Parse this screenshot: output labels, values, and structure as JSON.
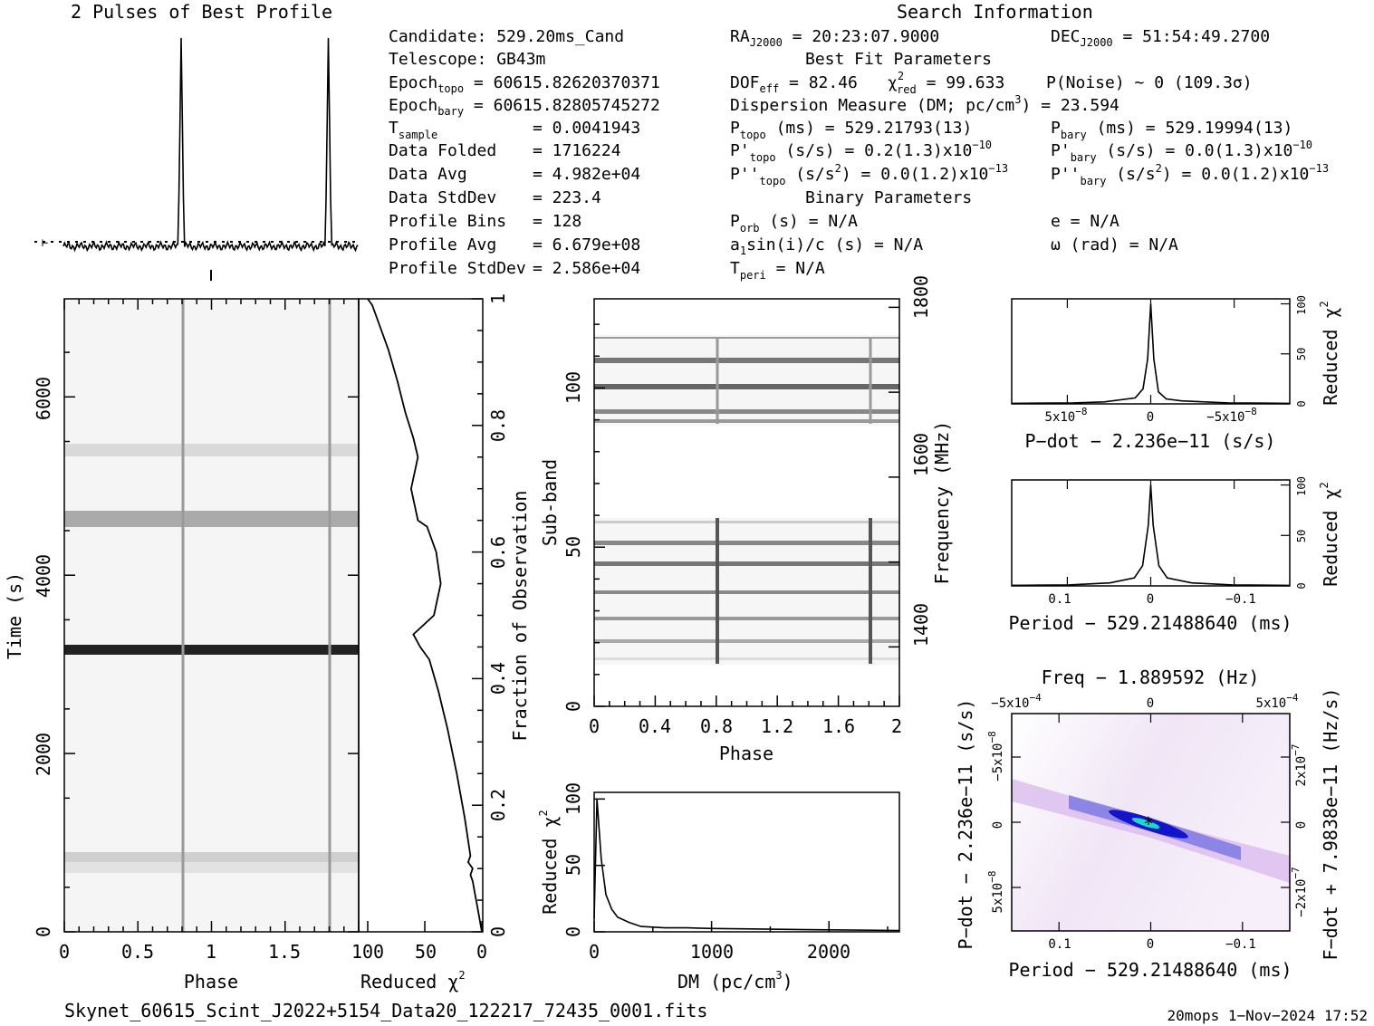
{
  "prof_title": "2 Pulses of Best Profile",
  "search_title": "Search Information",
  "info": {
    "candidate": "Candidate:  529.20ms_Cand",
    "telescope": "Telescope:  GB43m",
    "epoch_topo_lbl": "Epoch",
    "epoch_topo_sub": "topo",
    "epoch_topo_val": " = 60615.82620370371",
    "epoch_bary_lbl": "Epoch",
    "epoch_bary_sub": "bary",
    "epoch_bary_val": " = 60615.82805745272",
    "tsample_lbl": "T",
    "tsample_sub": "sample",
    "tsample_val": "=  0.0041943",
    "folded_lbl": "Data Folded",
    "folded_val": "=  1716224",
    "avg_lbl": "Data Avg",
    "avg_val": "=  4.982e+04",
    "std_lbl": "Data StdDev",
    "std_val": "=  223.4",
    "bins_lbl": "Profile Bins",
    "bins_val": "=  128",
    "pavg_lbl": "Profile Avg",
    "pavg_val": "=  6.679e+08",
    "pstd_lbl": "Profile StdDev",
    "pstd_val": "=  2.586e+04"
  },
  "search": {
    "ra_lbl": "RA",
    "ra_sub": "J2000",
    "ra_val": " = 20:23:07.9000",
    "dec_lbl": "DEC",
    "dec_sub": "J2000",
    "dec_val": " = 51:54:49.2700",
    "best_fit": "Best Fit Parameters",
    "dof_lbl": "DOF",
    "dof_sub": "eff",
    "dof_val": " = 82.46",
    "chi_sup": "2",
    "chi_sub": "red",
    "chi_val": " = 99.633",
    "pnoise": "P(Noise) ~ 0   (109.3σ)",
    "dm_line": "Dispersion Measure (DM; pc/cm",
    "dm_sup": "3",
    "dm_val": ") = 23.594",
    "ptopo_lbl": "P",
    "ptopo_sub": "topo",
    "ptopo_val": " (ms) =  529.21793(13)",
    "pbary_lbl": "P",
    "pbary_sub": "bary",
    "pbary_val": " (ms) =  529.19994(13)",
    "pdtopo_lbl": "P'",
    "pdtopo_sub": "topo",
    "pdtopo_val": " (s/s) =  0.2(1.3)x10",
    "pdtopo_exp": "−10",
    "pdbary_lbl": "P'",
    "pdbary_sub": "bary",
    "pdbary_val": " (s/s) = 0.0(1.3)x10",
    "pdbary_exp": "−10",
    "pddtopo_lbl": "P''",
    "pddtopo_sub": "topo",
    "pddtopo_val": " (s/s",
    "pddtopo_sup": "2",
    "pddtopo_val2": ") = 0.0(1.2)x10",
    "pddtopo_exp": "−13",
    "pddbary_lbl": "P''",
    "pddbary_sub": "bary",
    "pddbary_val": " (s/s",
    "pddbary_sup": "2",
    "pddbary_val2": ") = 0.0(1.2)x10",
    "pddbary_exp": "−13",
    "binary": "Binary Parameters",
    "porb_lbl": "P",
    "porb_sub": "orb",
    "porb_val": " (s) = N/A",
    "e_val": "e = N/A",
    "a1_lbl": "a",
    "a1_sub": "1",
    "a1_val": "sin(i)/c (s) = N/A",
    "omega_val": "ω (rad) = N/A",
    "tperi_lbl": "T",
    "tperi_sub": "peri",
    "tperi_val": " = N/A"
  },
  "axes": {
    "time_ylabel": "Time (s)",
    "phase_xlabel": "Phase",
    "redchi_xlabel": "Reduced χ",
    "redchi_sup": "2",
    "frac_label": "Fraction of Observation",
    "subband_label": "Sub-band",
    "freq_label": "Frequency (MHz)",
    "phase2_xlabel": "Phase",
    "dm_xlabel": "DM (pc/cm",
    "dm_xsup": "3",
    "dm_xclose": ")",
    "dm_ylabel": "Reduced χ",
    "dm_ysup": "2",
    "pdot_xlabel": "P−dot − 2.236e−11 (s/s)",
    "pdot_ylabel": "Reduced χ",
    "pdot_ysup": "2",
    "period_xlabel": "Period − 529.21488640 (ms)",
    "period_ylabel": "Reduced χ",
    "period_ysup": "2",
    "freq_top_label": "Freq − 1.889592 (Hz)",
    "pp_xlabel": "Period − 529.21488640 (ms)",
    "pp_ylabel": "P−dot − 2.236e−11 (s/s)",
    "pp_rlabel": "F−dot + 7.9838e−11 (Hz/s)"
  },
  "ticks": {
    "time": [
      "0",
      "2000",
      "4000",
      "6000"
    ],
    "phase": [
      "0",
      "0.5",
      "1",
      "1.5"
    ],
    "redchi": [
      "100",
      "50",
      "0"
    ],
    "frac": [
      "0",
      "0.2",
      "0.4",
      "0.6",
      "0.8",
      "1"
    ],
    "subband": [
      "0",
      "50",
      "100"
    ],
    "phase2": [
      "0",
      "0.4",
      "0.8",
      "1.2",
      "1.6",
      "2"
    ],
    "freq": [
      "1400",
      "1600",
      "1800"
    ],
    "dm_x": [
      "0",
      "1000",
      "2000"
    ],
    "dm_y": [
      "0",
      "50",
      "100"
    ],
    "pdot_x": [
      "5x10",
      "0",
      "−5x10"
    ],
    "pdot_xexp": [
      "−8",
      "",
      "−8"
    ],
    "chi_y": [
      "0",
      "50",
      "100"
    ],
    "period_x": [
      "0.1",
      "0",
      "−0.1"
    ],
    "freq_top": [
      "−5x10",
      "0",
      "5x10"
    ],
    "freq_top_exp": [
      "−4",
      "",
      "−4"
    ],
    "pp_y": [
      "−5x10",
      "0",
      "5x10"
    ],
    "pp_yexp": [
      "−8",
      "",
      "−8"
    ],
    "pp_r": [
      "2x10",
      "0",
      "−2x10"
    ],
    "pp_rexp": [
      "−7",
      "",
      "−7"
    ]
  },
  "footer": {
    "filename": "Skynet_60615_Scint_J2022+5154_Data20_122217_72435_0001.fits",
    "stamp": "20mops   1−Nov−2024 17:52"
  },
  "chart_data": [
    {
      "type": "line",
      "name": "profile",
      "title": "2 Pulses of Best Profile",
      "x": [
        0.0,
        0.78,
        0.8,
        0.82,
        0.84,
        1.0,
        1.78,
        1.8,
        1.82,
        1.84,
        2.0
      ],
      "y": [
        0.0,
        0.0,
        1.0,
        0.0,
        0.0,
        0.0,
        0.0,
        1.0,
        0.0,
        0.0,
        0.0
      ]
    },
    {
      "type": "heatmap",
      "name": "time-phase",
      "xlabel": "Phase",
      "ylabel": "Time (s)",
      "xlim": [
        0,
        2
      ],
      "ylim": [
        0,
        7100
      ],
      "pulse_phases": [
        0.81,
        1.81
      ]
    },
    {
      "type": "line",
      "name": "reduced-chi2-vs-time",
      "xlabel": "Reduced χ²",
      "ylabel": "Fraction of Observation",
      "xlim": [
        100,
        0
      ],
      "ylim": [
        0,
        1
      ],
      "x": [
        0,
        2,
        4,
        6,
        8,
        10,
        8,
        12,
        10,
        15,
        22,
        30,
        38,
        46,
        54,
        60,
        42,
        36,
        40,
        48,
        56,
        62,
        56,
        60,
        67,
        74,
        82,
        90,
        96,
        100
      ],
      "y": [
        0.0,
        0.02,
        0.04,
        0.06,
        0.08,
        0.09,
        0.1,
        0.11,
        0.12,
        0.18,
        0.25,
        0.32,
        0.38,
        0.43,
        0.45,
        0.47,
        0.5,
        0.55,
        0.6,
        0.64,
        0.65,
        0.7,
        0.75,
        0.78,
        0.82,
        0.87,
        0.92,
        0.96,
        0.99,
        1.0
      ]
    },
    {
      "type": "heatmap",
      "name": "subband-phase",
      "xlabel": "Phase",
      "ylabel": "Sub-band",
      "xlim": [
        0,
        2
      ],
      "ylim": [
        0,
        128
      ],
      "pulse_phases": [
        0.81,
        1.81
      ],
      "freq_ticks_mhz": [
        1400,
        1600,
        1800
      ]
    },
    {
      "type": "line",
      "name": "dm-chi2",
      "xlabel": "DM (pc/cm³)",
      "ylabel": "Reduced χ²",
      "xlim": [
        0,
        2600
      ],
      "ylim": [
        0,
        105
      ],
      "x": [
        0,
        23.6,
        60,
        100,
        150,
        200,
        300,
        400,
        600,
        800,
        1000,
        1500,
        2000,
        2600
      ],
      "y": [
        10,
        100,
        55,
        28,
        17,
        11,
        7,
        4,
        3,
        3,
        2.5,
        2,
        1.5,
        1
      ]
    },
    {
      "type": "line",
      "name": "pdot-chi2",
      "xlabel": "P−dot − 2.236e−11 (s/s)",
      "ylabel": "Reduced χ²",
      "xlim": [
        9e-08,
        -9e-08
      ],
      "ylim": [
        0,
        105
      ],
      "x": [
        9e-08,
        5e-08,
        3e-08,
        1e-08,
        5e-09,
        2e-09,
        0,
        -2e-09,
        -5e-09,
        -1e-08,
        -2e-08,
        -5e-08,
        -9e-08
      ],
      "y": [
        0.5,
        1,
        2,
        6,
        15,
        45,
        100,
        45,
        12,
        5,
        3,
        1,
        0.5
      ]
    },
    {
      "type": "line",
      "name": "period-chi2",
      "xlabel": "Period − 529.21488640 (ms)",
      "ylabel": "Reduced χ²",
      "xlim": [
        0.17,
        -0.17
      ],
      "ylim": [
        0,
        105
      ],
      "x": [
        0.17,
        0.1,
        0.05,
        0.02,
        0.01,
        0.003,
        0,
        -0.003,
        -0.01,
        -0.02,
        -0.05,
        -0.1,
        -0.17
      ],
      "y": [
        0.5,
        1,
        3,
        8,
        20,
        60,
        100,
        60,
        20,
        8,
        3,
        1,
        0.5
      ]
    },
    {
      "type": "heatmap",
      "name": "period-pdot",
      "xlabel": "Period − 529.21488640 (ms)",
      "ylabel": "P−dot − 2.236e−11 (s/s)",
      "xlim": [
        0.17,
        -0.17
      ],
      "ylim": [
        9e-08,
        -9e-08
      ],
      "peak": [
        0,
        0
      ]
    }
  ]
}
